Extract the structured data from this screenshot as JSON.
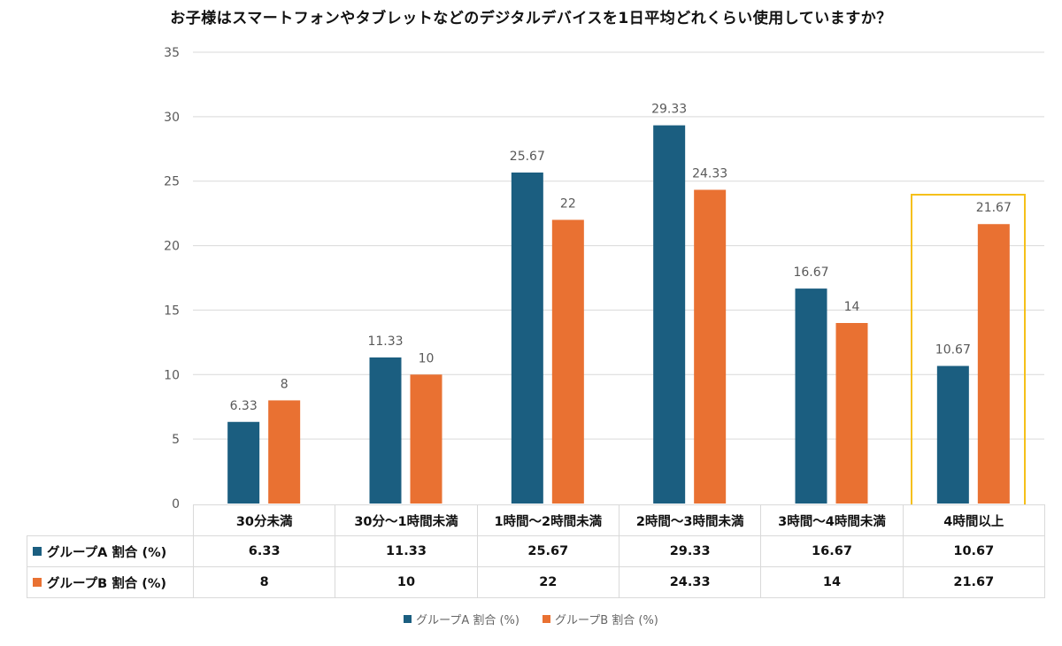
{
  "chart_data": {
    "type": "bar",
    "title": "お子様はスマートフォンやタブレットなどのデジタルデバイスを1日平均どれくらい使用していますか？",
    "xlabel": "",
    "ylabel": "",
    "ylim": [
      0,
      35
    ],
    "yticks": [
      "0",
      "5",
      "10",
      "15",
      "20",
      "25",
      "30",
      "35"
    ],
    "grid": true,
    "categories": [
      "30分未満",
      "30分～1時間未満",
      "1時間～2時間未満",
      "2時間～3時間未満",
      "3時間～4時間未満",
      "4時間以上"
    ],
    "series": [
      {
        "name": "グループA 割合 (%)",
        "color": "#1b5e80",
        "values": [
          6.33,
          11.33,
          25.67,
          29.33,
          16.67,
          10.67
        ],
        "labels": [
          "6.33",
          "11.33",
          "25.67",
          "29.33",
          "16.67",
          "10.67"
        ]
      },
      {
        "name": "グループB 割合 (%)",
        "color": "#e97132",
        "values": [
          8,
          10,
          22,
          24.33,
          14,
          21.67
        ],
        "labels": [
          "8",
          "10",
          "22",
          "24.33",
          "14",
          "21.67"
        ]
      }
    ],
    "legend_position": "bottom",
    "data_table": true,
    "highlighted_category": "4時間以上",
    "highlight_color": "#f5c01a"
  }
}
